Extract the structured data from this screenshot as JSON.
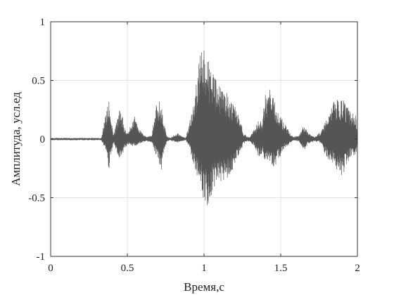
{
  "chart_data": {
    "type": "line",
    "xlabel": "Время,с",
    "ylabel": "Амплитуда, усл.ед",
    "xlim": [
      0,
      2
    ],
    "ylim": [
      -1,
      1
    ],
    "x_ticks": [
      0,
      0.5,
      1,
      1.5,
      2
    ],
    "x_tick_labels": [
      "0",
      "0.5",
      "1",
      "1.5",
      "2"
    ],
    "y_ticks": [
      -1,
      -0.5,
      0,
      0.5,
      1
    ],
    "y_tick_labels": [
      "-1",
      "-0.5",
      "0",
      "0.5",
      "1"
    ],
    "grid": true,
    "line_color": "#555555",
    "series": [
      {
        "envelope_x": [
          0.0,
          0.33,
          0.36,
          0.38,
          0.39,
          0.41,
          0.43,
          0.45,
          0.47,
          0.48,
          0.5,
          0.52,
          0.55,
          0.58,
          0.62,
          0.66,
          0.68,
          0.7,
          0.72,
          0.74,
          0.76,
          0.78,
          0.8,
          0.83,
          0.85,
          0.88,
          0.9,
          0.93,
          0.96,
          0.98,
          1.0,
          1.02,
          1.05,
          1.1,
          1.15,
          1.18,
          1.22,
          1.26,
          1.28,
          1.3,
          1.33,
          1.36,
          1.38,
          1.4,
          1.43,
          1.46,
          1.48,
          1.52,
          1.55,
          1.58,
          1.62,
          1.65,
          1.68,
          1.72,
          1.76,
          1.8,
          1.85,
          1.9,
          1.95,
          1.99,
          2.0
        ],
        "envelope_max": [
          0.01,
          0.01,
          0.22,
          0.33,
          0.2,
          0.03,
          0.15,
          0.25,
          0.19,
          0.1,
          0.05,
          0.11,
          0.2,
          0.08,
          0.02,
          0.03,
          0.24,
          0.35,
          0.3,
          0.14,
          0.02,
          0.01,
          0.03,
          0.05,
          0.03,
          0.01,
          0.12,
          0.28,
          0.59,
          0.75,
          0.79,
          0.72,
          0.58,
          0.45,
          0.4,
          0.32,
          0.24,
          0.05,
          0.02,
          0.02,
          0.09,
          0.17,
          0.16,
          0.4,
          0.43,
          0.32,
          0.24,
          0.15,
          0.08,
          0.02,
          0.03,
          0.12,
          0.05,
          0.02,
          0.06,
          0.17,
          0.33,
          0.35,
          0.25,
          0.2,
          0.02
        ],
        "envelope_min": [
          -0.01,
          -0.01,
          -0.1,
          -0.27,
          -0.18,
          -0.03,
          -0.1,
          -0.19,
          -0.13,
          -0.09,
          -0.05,
          -0.06,
          -0.06,
          -0.04,
          -0.02,
          -0.03,
          -0.12,
          -0.17,
          -0.3,
          -0.09,
          -0.02,
          -0.01,
          -0.02,
          -0.03,
          -0.02,
          -0.01,
          -0.06,
          -0.21,
          -0.37,
          -0.46,
          -0.53,
          -0.58,
          -0.49,
          -0.38,
          -0.34,
          -0.28,
          -0.16,
          -0.04,
          -0.02,
          -0.02,
          -0.07,
          -0.16,
          -0.11,
          -0.21,
          -0.23,
          -0.25,
          -0.19,
          -0.09,
          -0.05,
          -0.01,
          -0.02,
          -0.1,
          -0.04,
          -0.02,
          -0.03,
          -0.16,
          -0.23,
          -0.33,
          -0.16,
          -0.14,
          -0.02
        ]
      }
    ]
  }
}
